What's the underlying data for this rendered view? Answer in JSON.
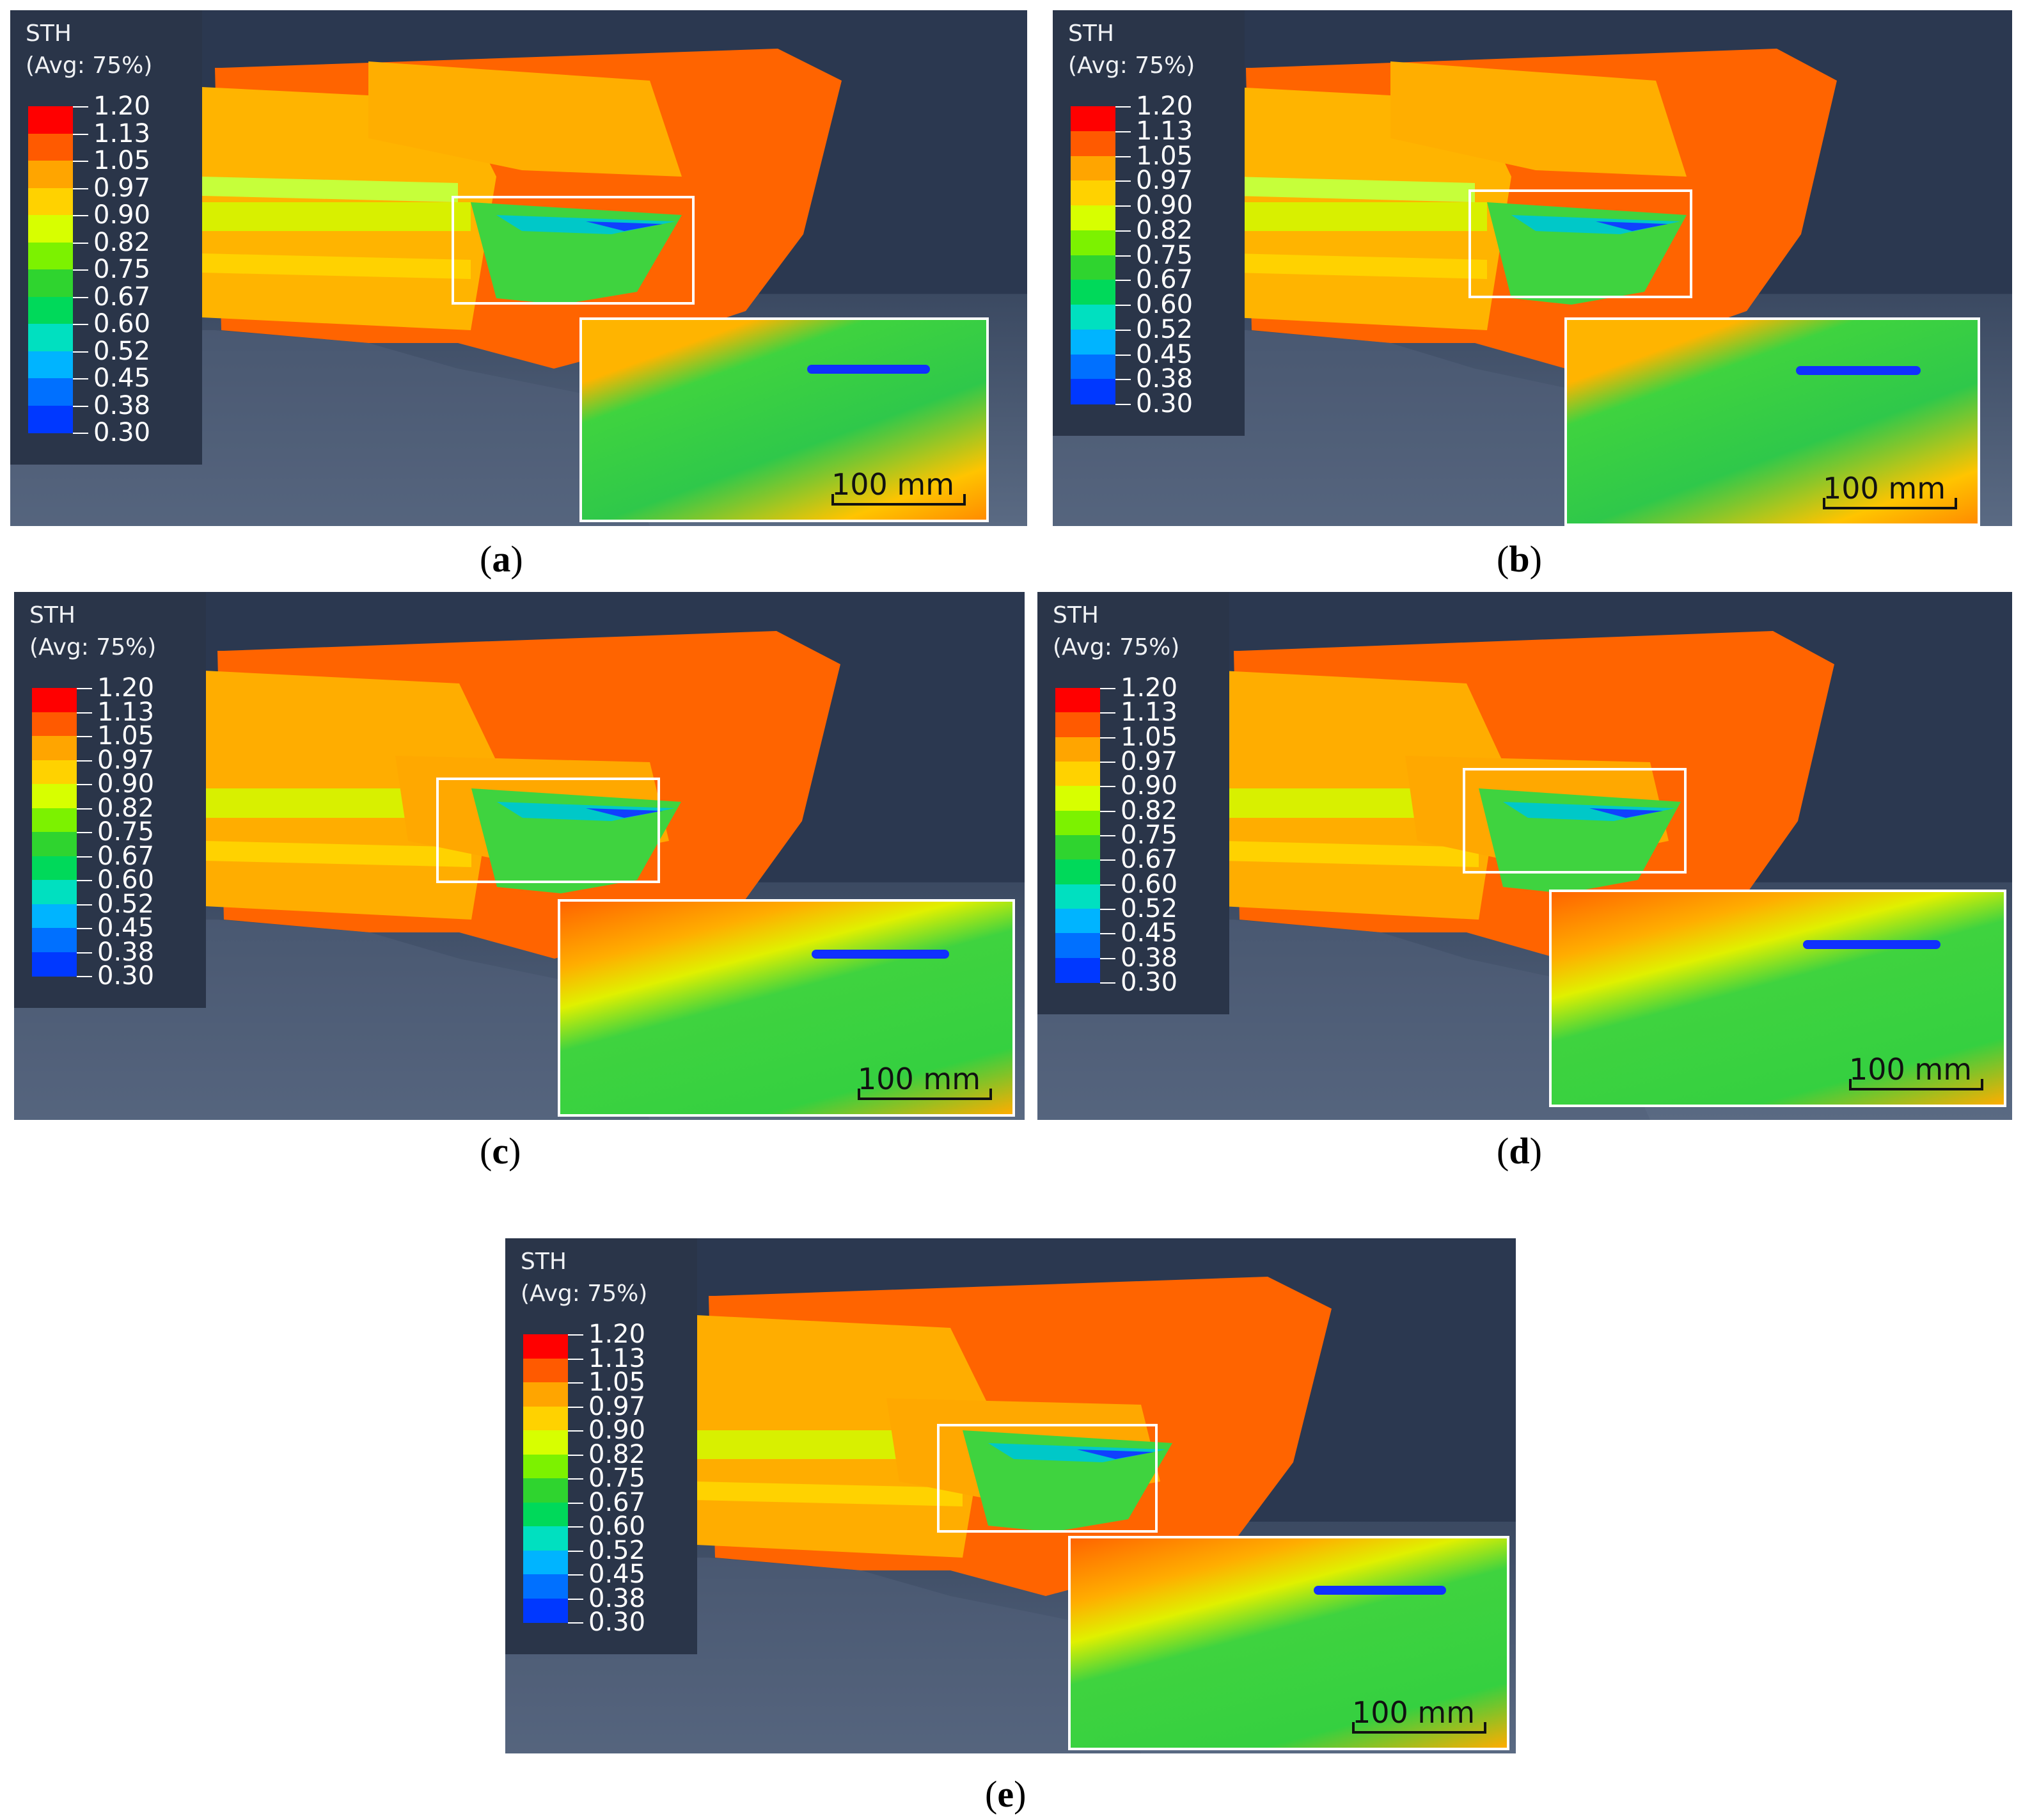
{
  "legend": {
    "title": "STH",
    "subtitle": "(Avg: 75%)",
    "levels": [
      "1.20",
      "1.13",
      "1.05",
      "0.97",
      "0.90",
      "0.82",
      "0.75",
      "0.67",
      "0.60",
      "0.52",
      "0.45",
      "0.38",
      "0.30"
    ],
    "colors": [
      "#ff0000",
      "#ff5a00",
      "#ffa500",
      "#ffd200",
      "#d7ff00",
      "#7cf200",
      "#2fd42f",
      "#00d95a",
      "#00e0c0",
      "#00b4ff",
      "#0070ff",
      "#0038ff",
      "#0000ff"
    ]
  },
  "scale_label": "100 mm",
  "panels": [
    {
      "id": "a",
      "caption": "a"
    },
    {
      "id": "b",
      "caption": "b"
    },
    {
      "id": "c",
      "caption": "c"
    },
    {
      "id": "d",
      "caption": "d"
    },
    {
      "id": "e",
      "caption": "e"
    }
  ]
}
